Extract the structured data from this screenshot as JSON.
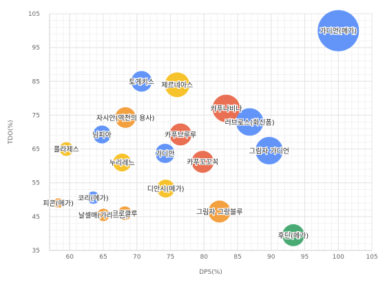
{
  "chart_data": {
    "type": "scatter",
    "xlabel": "DPS(%)",
    "ylabel": "TDO(%)",
    "xlim": [
      57,
      105
    ],
    "ylim": [
      35,
      105
    ],
    "xticks": [
      60,
      65,
      70,
      75,
      80,
      85,
      90,
      95,
      100,
      105
    ],
    "yticks": [
      35,
      45,
      55,
      65,
      75,
      85,
      95,
      105
    ],
    "grid": true,
    "colors": {
      "blue": "#5b8ff9",
      "yellow": "#f6c022",
      "red": "#e8684a",
      "orange": "#f29b36",
      "green": "#3fa66b"
    },
    "points": [
      {
        "label": "가디언(메가)",
        "x": 100,
        "y": 100,
        "size": 30,
        "color": "#5b8ff9"
      },
      {
        "label": "토게키스",
        "x": 70.7,
        "y": 85,
        "size": 15,
        "color": "#5b8ff9"
      },
      {
        "label": "제르네아스",
        "x": 76,
        "y": 84,
        "size": 18,
        "color": "#f6c022"
      },
      {
        "label": "카푸나비나",
        "x": 83.3,
        "y": 77,
        "size": 20,
        "color": "#e8684a"
      },
      {
        "label": "러브로스(화신폼)",
        "x": 86.8,
        "y": 73,
        "size": 20,
        "color": "#5b8ff9"
      },
      {
        "label": "자시안(역전의 용사)",
        "x": 68.3,
        "y": 74.3,
        "size": 15,
        "color": "#f29b36"
      },
      {
        "label": "님피아",
        "x": 64.8,
        "y": 69.3,
        "size": 13,
        "color": "#5b8ff9"
      },
      {
        "label": "카푸브루루",
        "x": 76.5,
        "y": 69.3,
        "size": 16,
        "color": "#e8684a"
      },
      {
        "label": "플라제스",
        "x": 59.5,
        "y": 65,
        "size": 10,
        "color": "#f6c022"
      },
      {
        "label": "그림자 가디언",
        "x": 89.7,
        "y": 64.5,
        "size": 20,
        "color": "#5b8ff9"
      },
      {
        "label": "가디안",
        "x": 74.2,
        "y": 63.7,
        "size": 14,
        "color": "#5b8ff9"
      },
      {
        "label": "누리레느",
        "x": 67.8,
        "y": 61,
        "size": 13,
        "color": "#f6c022"
      },
      {
        "label": "카푸꼬꼬꼭",
        "x": 79.8,
        "y": 61.2,
        "size": 16,
        "color": "#e8684a"
      },
      {
        "label": "디안시(메가)",
        "x": 74.3,
        "y": 53.3,
        "size": 13,
        "color": "#f6c022"
      },
      {
        "label": "피콘(메가)",
        "x": 58.3,
        "y": 49,
        "size": 7,
        "color": "#f29b36"
      },
      {
        "label": "코리(메가)",
        "x": 63.5,
        "y": 50.6,
        "size": 9,
        "color": "#5b8ff9"
      },
      {
        "label": "날셀매(가라르폼)",
        "x": 65,
        "y": 45.5,
        "size": 9,
        "color": "#f29b36"
      },
      {
        "label": "크로클루",
        "x": 68.2,
        "y": 46,
        "size": 10,
        "color": "#f29b36"
      },
      {
        "label": "그림자 그랑블루",
        "x": 82.3,
        "y": 46.5,
        "size": 16,
        "color": "#f29b36"
      },
      {
        "label": "후딘(메가)",
        "x": 93.3,
        "y": 39.5,
        "size": 16,
        "color": "#3fa66b"
      }
    ]
  }
}
